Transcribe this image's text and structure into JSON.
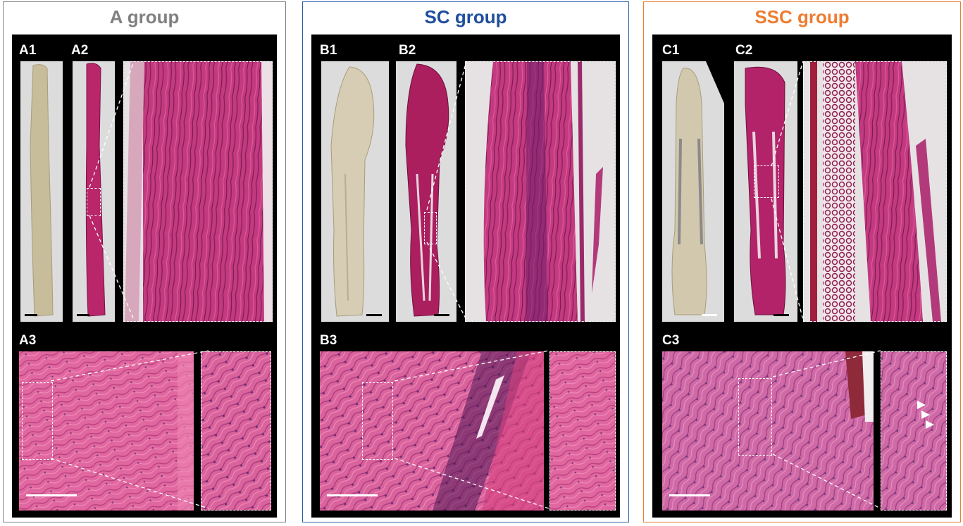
{
  "groups": [
    {
      "title": "A group",
      "color": "#808080",
      "labels": [
        "A1",
        "A2",
        "A3"
      ]
    },
    {
      "title": "SC group",
      "color": "#1f4e9c",
      "labels": [
        "B1",
        "B2",
        "B3"
      ]
    },
    {
      "title": "SSC group",
      "color": "#ed7d31",
      "labels": [
        "C1",
        "C2",
        "C3"
      ]
    }
  ],
  "colors": {
    "frame_gray": "#808080",
    "frame_blue": "#2e5fa8",
    "frame_orange": "#ed7d31",
    "tissue_pink": "#c8367a",
    "tissue_unstained": "#cbbf9f",
    "slide_background": "#dcdcdc"
  }
}
